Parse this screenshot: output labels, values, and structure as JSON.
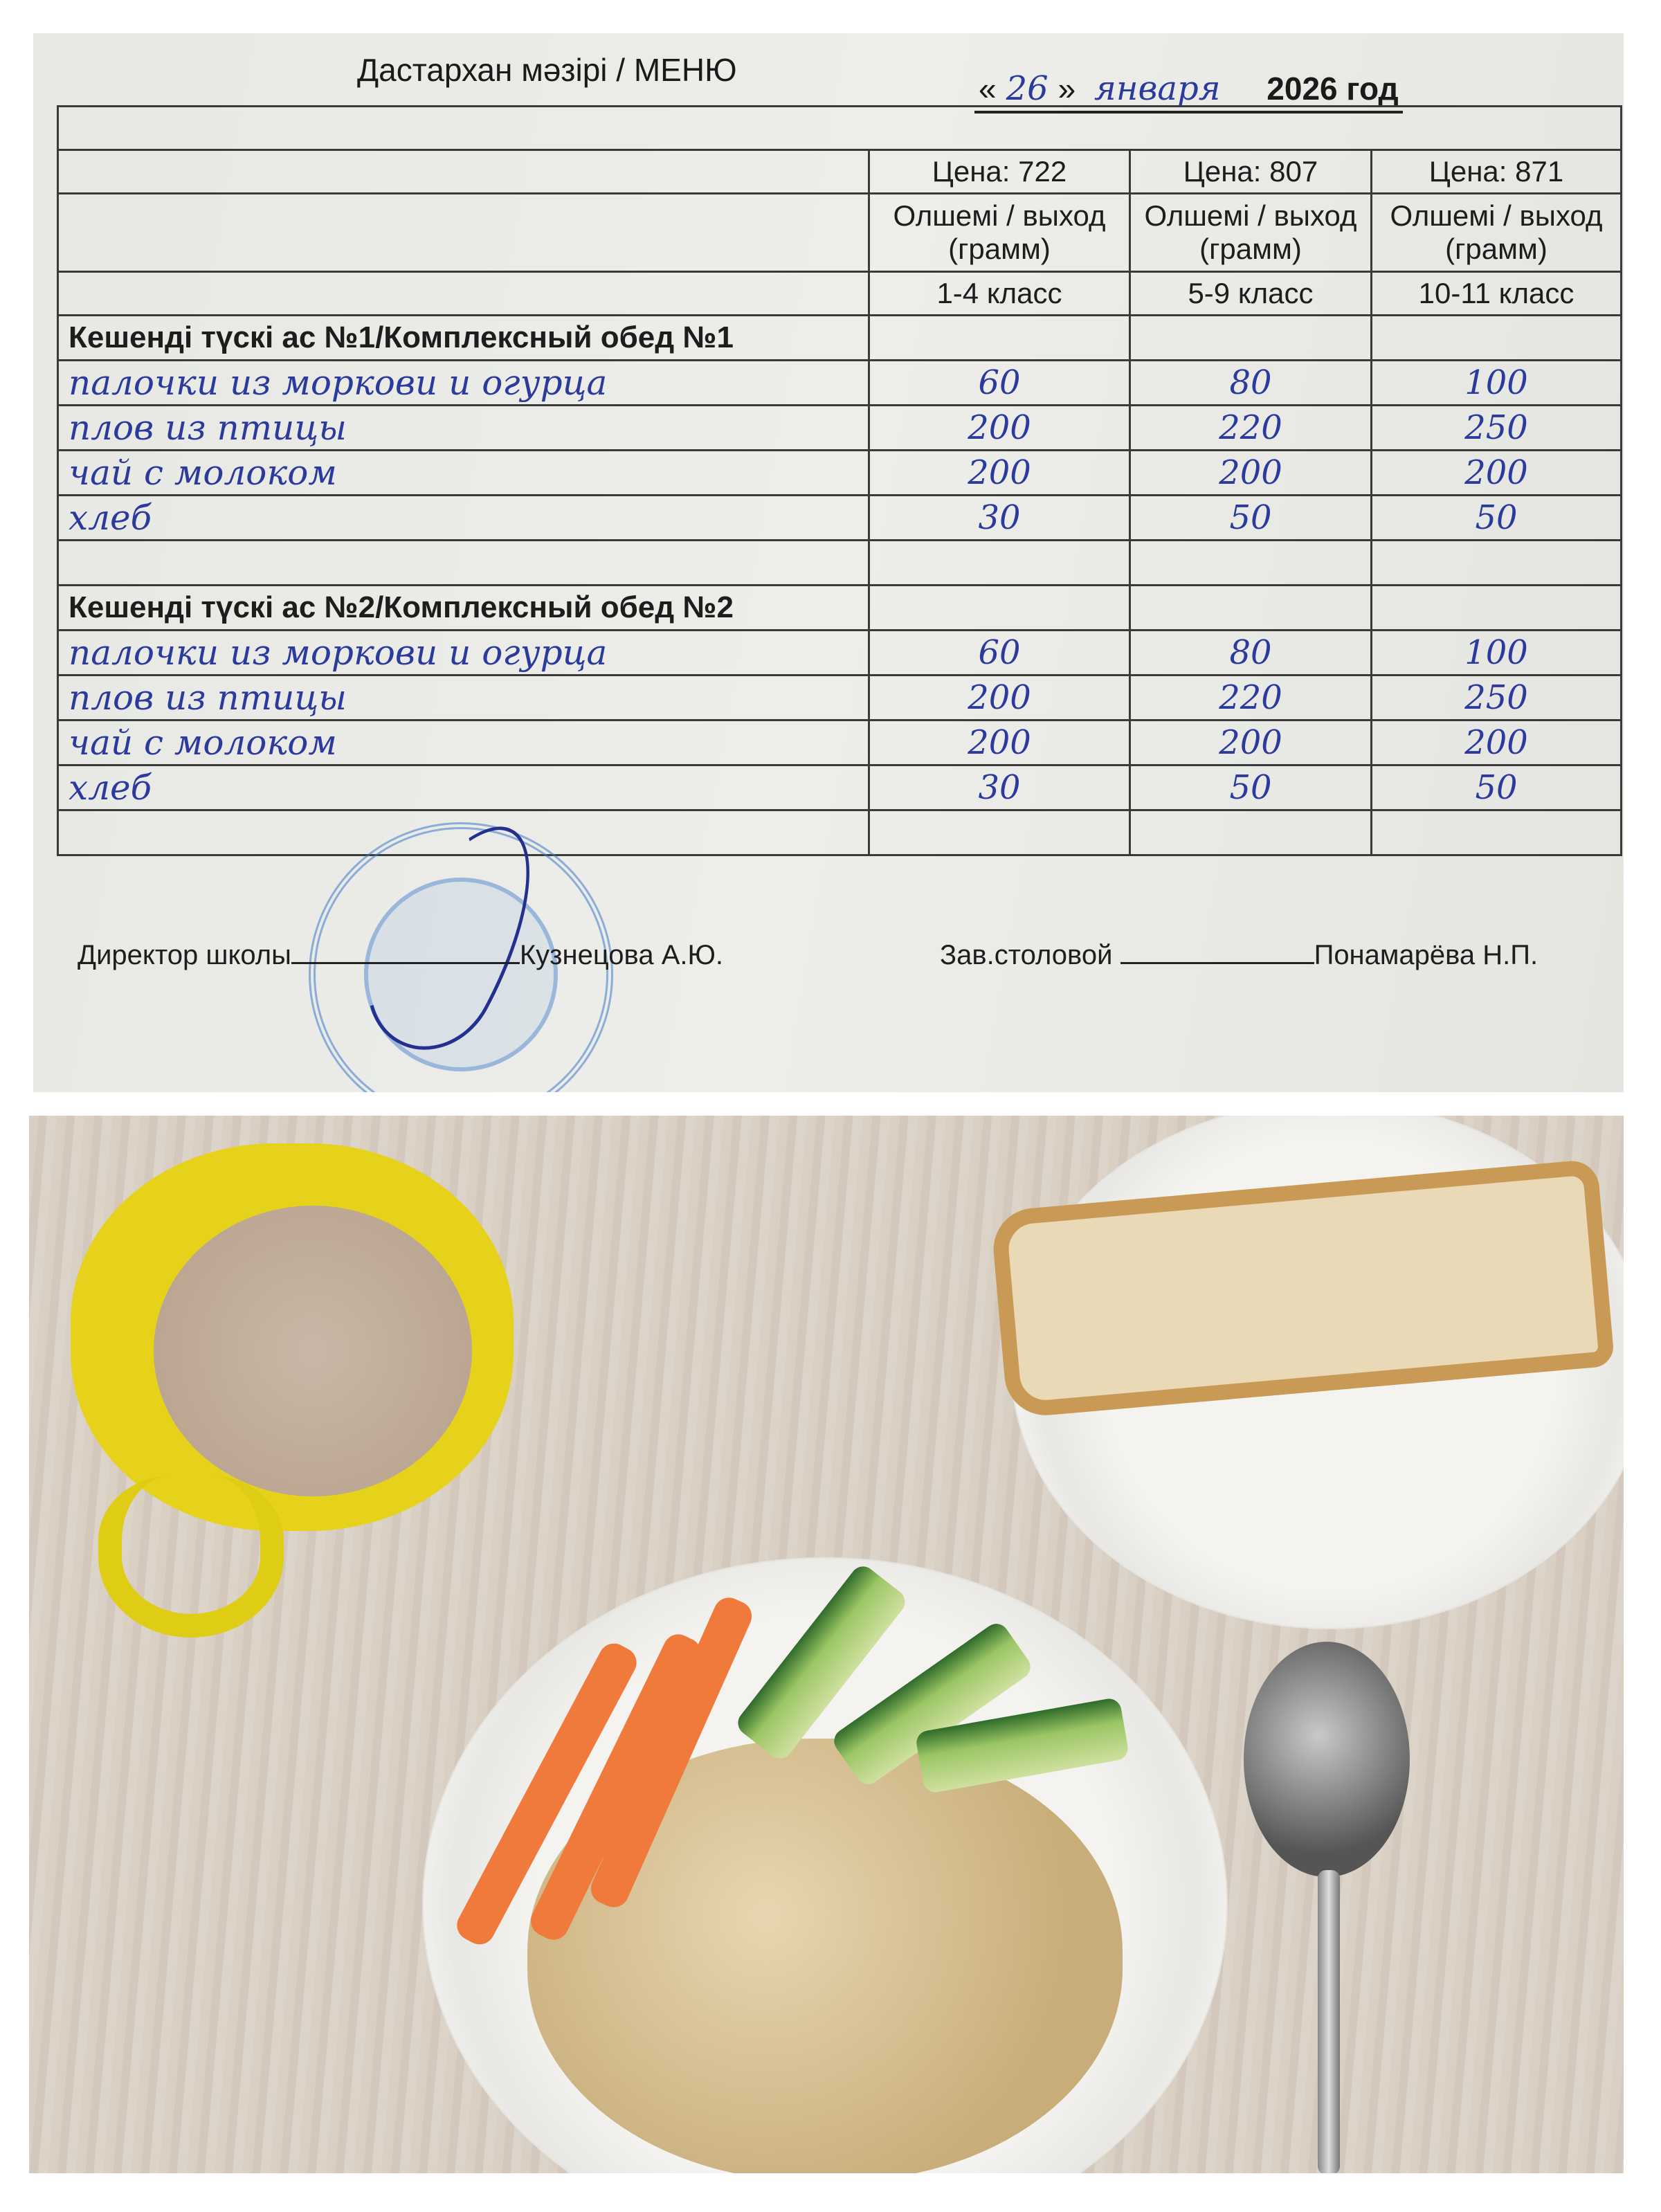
{
  "menu": {
    "title": "Дастархан мәзірі / МЕНЮ",
    "date": {
      "open": "«",
      "day": "26",
      "close": "»",
      "month": "января",
      "year": "2026 год"
    },
    "columns": [
      {
        "price": "Цена:  722",
        "unit": "Олшемі / выход (грамм)",
        "grade": "1-4 класс"
      },
      {
        "price": "Цена: 807",
        "unit": "Олшемі / выход  (грамм)",
        "grade": "5-9 класс"
      },
      {
        "price": "Цена: 871",
        "unit": "Олшемі / выход  (грамм)",
        "grade": "10-11 класс"
      }
    ],
    "sections": [
      {
        "title": "Кешенді  түскі ас №1/Комплексный обед №1",
        "items": [
          {
            "name": "палочки из моркови и огурца",
            "values": [
              "60",
              "80",
              "100"
            ]
          },
          {
            "name": "плов из птицы",
            "values": [
              "200",
              "220",
              "250"
            ]
          },
          {
            "name": "чай с молоком",
            "values": [
              "200",
              "200",
              "200"
            ]
          },
          {
            "name": "хлеб",
            "values": [
              "30",
              "50",
              "50"
            ]
          }
        ]
      },
      {
        "title": "Кешенді  түскі ас №2/Комплексный обед №2",
        "items": [
          {
            "name": "палочки из моркови и огурца",
            "values": [
              "60",
              "80",
              "100"
            ]
          },
          {
            "name": "плов из птицы",
            "values": [
              "200",
              "220",
              "250"
            ]
          },
          {
            "name": "чай с молоком",
            "values": [
              "200",
              "200",
              "200"
            ]
          },
          {
            "name": "хлеб",
            "values": [
              "30",
              "50",
              "50"
            ]
          }
        ]
      }
    ],
    "signatures": {
      "director_label": "Директор школы",
      "director_name": "Кузнецова А.Ю.",
      "canteen_label": "Зав.столовой",
      "canteen_name": "Понамарёва Н.П."
    }
  },
  "colors": {
    "ink": "#2b3a9c",
    "stamp": "#3c78c8",
    "mug": "#e6d21a"
  }
}
